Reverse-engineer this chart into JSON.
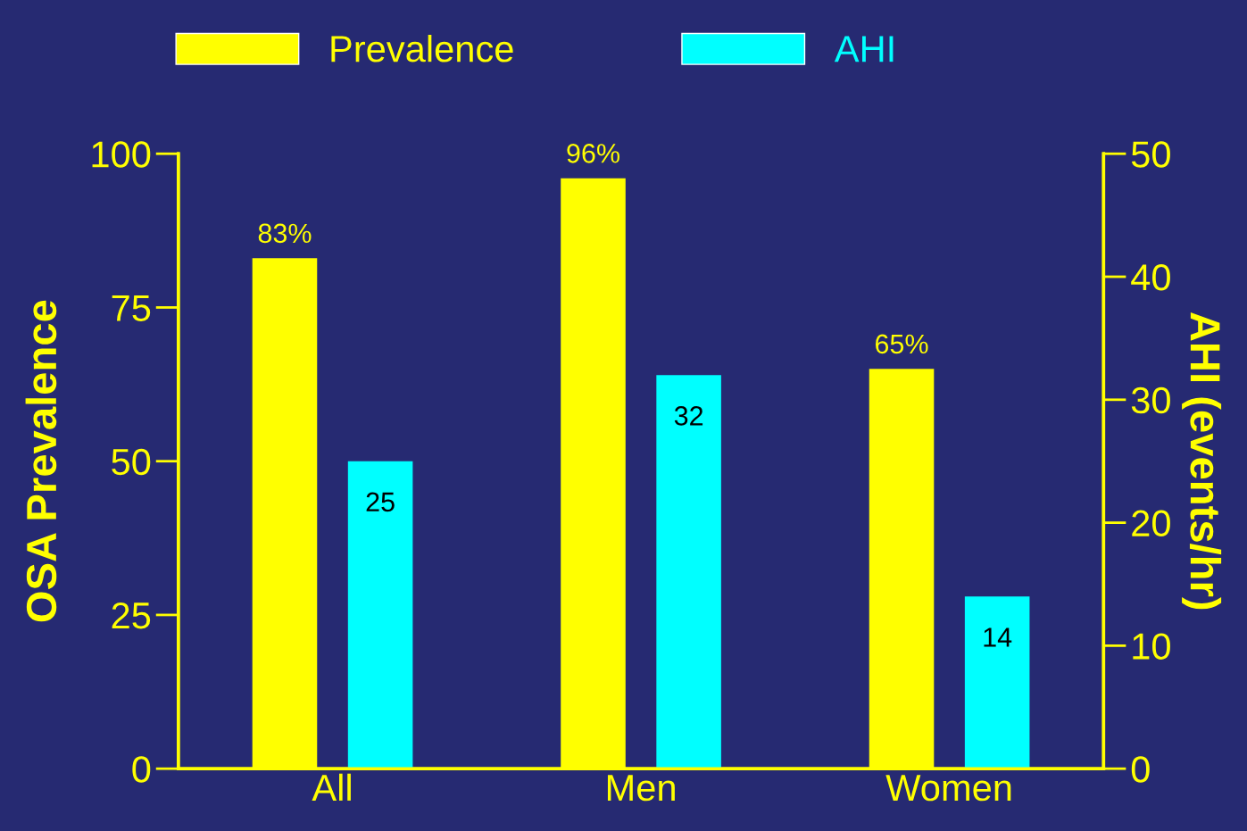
{
  "chart_data": {
    "type": "bar",
    "ylabel": "OSA Prevalence",
    "y2label": "AHI (events/hr)",
    "categories": [
      "All",
      "Men",
      "Women"
    ],
    "series": [
      {
        "name": "Prevalence",
        "color": "#ffff00",
        "values": [
          83,
          96,
          65
        ],
        "value_labels": [
          "83%",
          "96%",
          "65%"
        ]
      },
      {
        "name": "AHI",
        "color": "#00ffff",
        "axis": "y2",
        "values": [
          25,
          32,
          14
        ],
        "value_labels": [
          "25",
          "32",
          "14"
        ]
      }
    ],
    "ylim": [
      0,
      100
    ],
    "yticks": [
      0,
      25,
      50,
      75,
      100
    ],
    "y2lim": [
      0,
      50
    ],
    "y2ticks": [
      0,
      10,
      20,
      30,
      40,
      50
    ],
    "legend": "top",
    "grid": false
  }
}
